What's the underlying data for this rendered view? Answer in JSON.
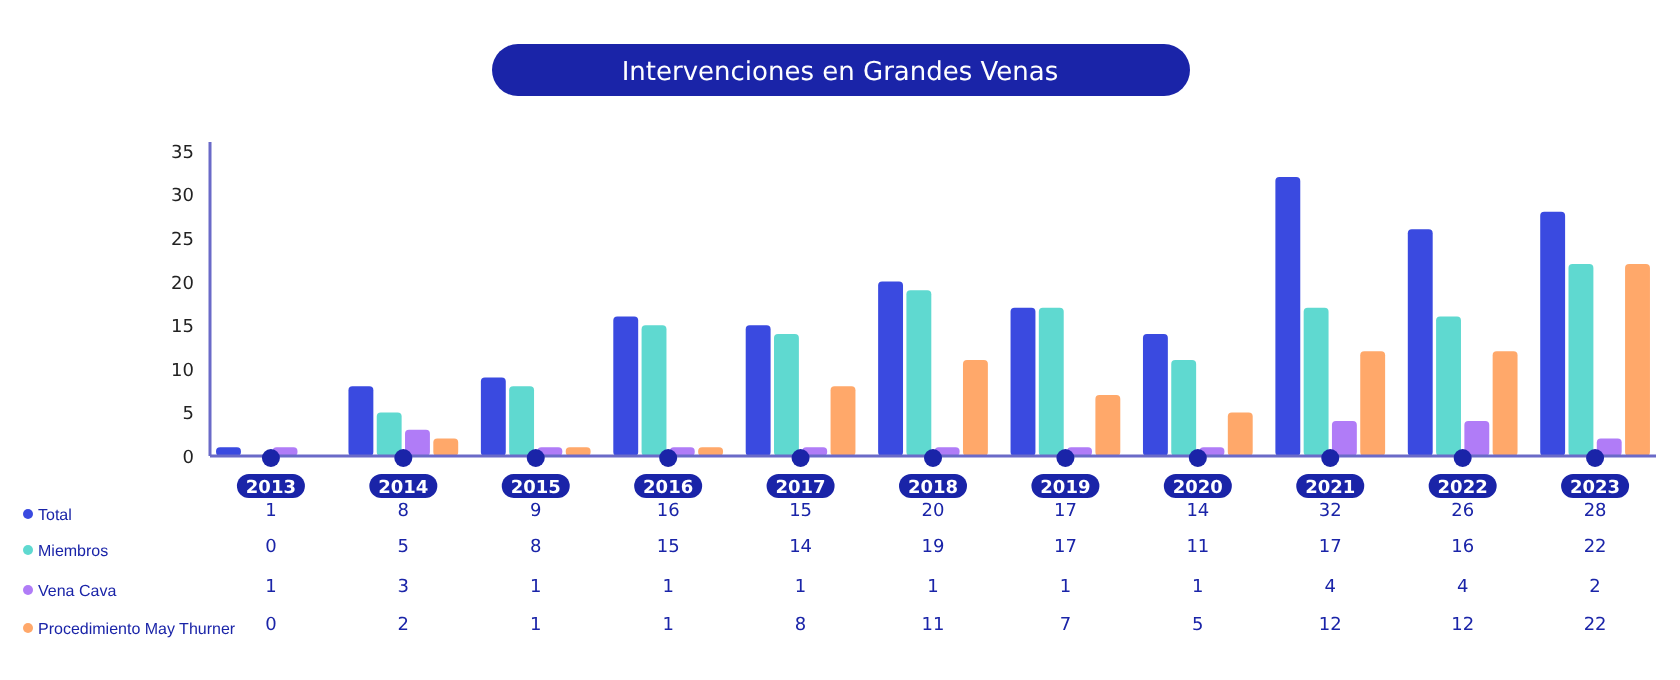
{
  "chart_data": {
    "type": "bar",
    "title": "Intervenciones en Grandes Venas",
    "categories": [
      "2013",
      "2014",
      "2015",
      "2016",
      "2017",
      "2018",
      "2019",
      "2020",
      "2021",
      "2022",
      "2023"
    ],
    "series": [
      {
        "name": "Total",
        "color": "#3a4ae0",
        "values": [
          1,
          8,
          9,
          16,
          15,
          20,
          17,
          14,
          32,
          26,
          28
        ]
      },
      {
        "name": "Miembros",
        "color": "#5fd9d0",
        "values": [
          0,
          5,
          8,
          15,
          14,
          19,
          17,
          11,
          17,
          16,
          22
        ]
      },
      {
        "name": "Vena Cava",
        "color": "#b07cf7",
        "values": [
          1,
          3,
          1,
          1,
          1,
          1,
          1,
          1,
          4,
          4,
          2
        ]
      },
      {
        "name": "Procedimiento May Thurner",
        "color": "#ffa86a",
        "values": [
          0,
          2,
          1,
          1,
          8,
          11,
          7,
          5,
          12,
          12,
          22
        ]
      }
    ],
    "ylim": [
      0,
      36
    ],
    "yticks": [
      0,
      5,
      10,
      15,
      20,
      25,
      30,
      35
    ],
    "grid": false,
    "legend": "bottom left",
    "data_labels": true
  }
}
